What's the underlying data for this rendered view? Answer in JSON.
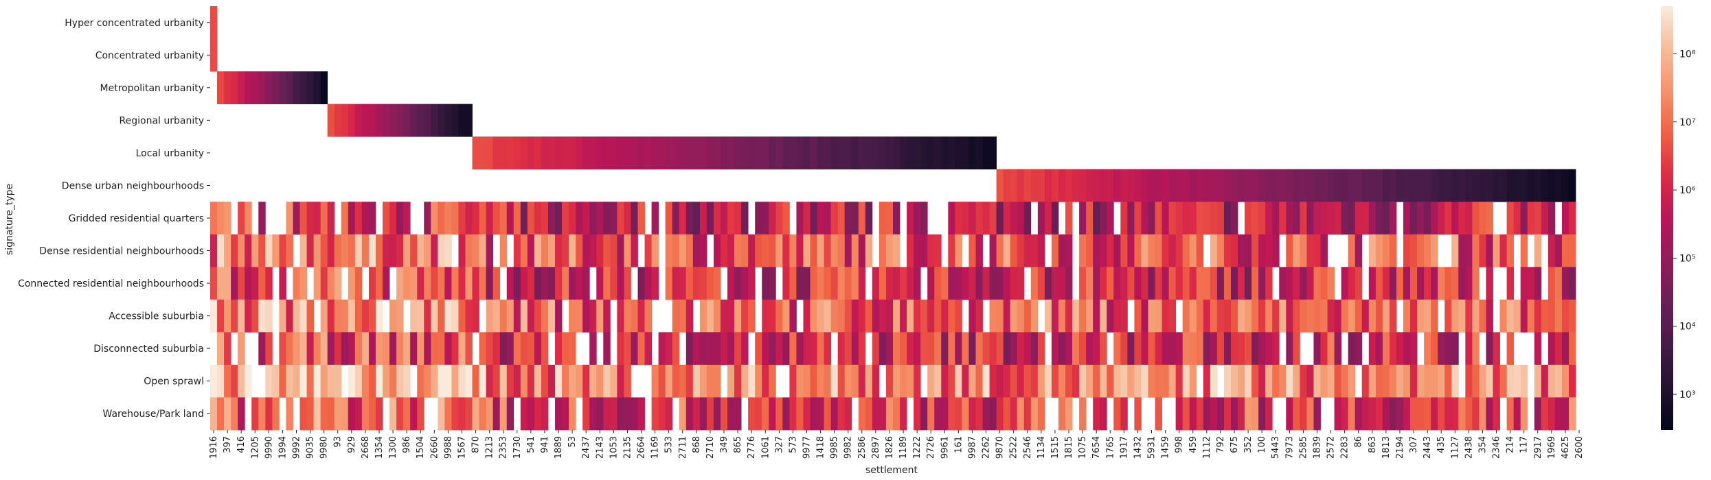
{
  "chart_data": {
    "type": "heatmap",
    "xlabel": "settlement",
    "ylabel": "signature_type",
    "rows": [
      "Hyper concentrated urbanity",
      "Concentrated urbanity",
      "Metropolitan urbanity",
      "Regional urbanity",
      "Local urbanity",
      "Dense urban neighbourhoods",
      "Gridded residential quarters",
      "Dense residential neighbourhoods",
      "Connected residential neighbourhoods",
      "Accessible suburbia",
      "Disconnected suburbia",
      "Open sprawl",
      "Warehouse/Park land"
    ],
    "x_tick_labels": [
      "1916",
      "397",
      "416",
      "1205",
      "9990",
      "1994",
      "9992",
      "9035",
      "9980",
      "93",
      "929",
      "2668",
      "1354",
      "1300",
      "986",
      "1504",
      "2660",
      "9988",
      "1567",
      "870",
      "1213",
      "2353",
      "1730",
      "541",
      "941",
      "1889",
      "53",
      "2437",
      "2143",
      "1053",
      "2135",
      "2664",
      "1169",
      "533",
      "2711",
      "868",
      "2710",
      "349",
      "865",
      "2776",
      "1061",
      "327",
      "573",
      "9977",
      "1418",
      "9985",
      "9982",
      "2586",
      "2897",
      "1826",
      "1189",
      "1222",
      "2726",
      "9961",
      "161",
      "9987",
      "2262",
      "9870",
      "2522",
      "2546",
      "1134",
      "1515",
      "1815",
      "1075",
      "7654",
      "1765",
      "1917",
      "1432",
      "5931",
      "1459",
      "998",
      "459",
      "1112",
      "792",
      "675",
      "352",
      "100",
      "5443",
      "7973",
      "2585",
      "1839",
      "2572",
      "2283",
      "86",
      "863",
      "1813",
      "2194",
      "307",
      "2443",
      "435",
      "1127",
      "2438",
      "354",
      "2346",
      "214",
      "117",
      "2917",
      "1969",
      "4625",
      "2600"
    ],
    "n_columns": 198,
    "colorbar": {
      "scale": "log",
      "range": [
        300,
        500000000
      ],
      "tick_labels": [
        "10³",
        "10⁴",
        "10⁵",
        "10⁶",
        "10⁷",
        "10⁸"
      ]
    },
    "colormap": "rocket",
    "missing_color": "#ffffff",
    "row_extent_columns": [
      [
        0,
        1
      ],
      [
        0,
        1
      ],
      [
        1,
        17
      ],
      [
        17,
        38
      ],
      [
        38,
        114
      ],
      [
        114,
        198
      ],
      [
        0,
        198
      ],
      [
        0,
        198
      ],
      [
        0,
        198
      ],
      [
        0,
        198
      ],
      [
        0,
        198
      ],
      [
        0,
        198
      ],
      [
        0,
        198
      ]
    ]
  }
}
